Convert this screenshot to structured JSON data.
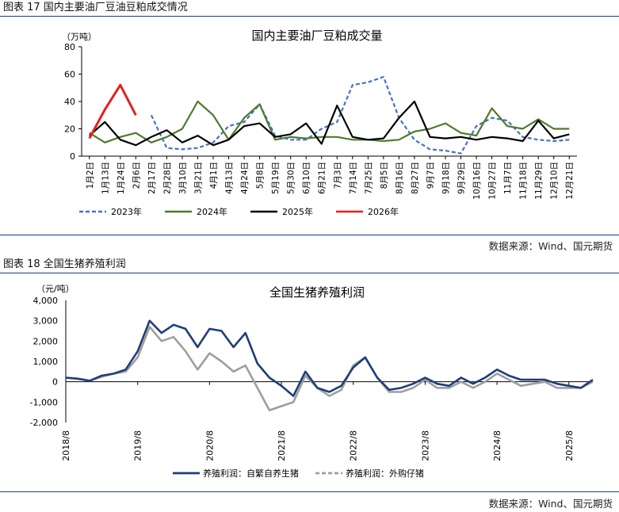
{
  "figure1": {
    "header": "图表 17  国内主要油厂豆油豆粕成交情况",
    "source": "数据来源：Wind、国元期货"
  },
  "figure2": {
    "header": "图表 18  全国生猪养殖利润",
    "source": "数据来源：Wind、国元期货"
  },
  "chart_data": [
    {
      "type": "line",
      "title": "国内主要油厂豆粕成交量",
      "ylabel": "（万吨）",
      "ylim": [
        0,
        80
      ],
      "yticks": [
        "0",
        "20",
        "40",
        "60",
        "80"
      ],
      "categories": [
        "1月2日",
        "1月13日",
        "1月24日",
        "2月6日",
        "2月17日",
        "2月28日",
        "3月10日",
        "3月21日",
        "4月1日",
        "4月13日",
        "4月24日",
        "5月8日",
        "5月19日",
        "5月30日",
        "6月10日",
        "6月21日",
        "7月3日",
        "7月14日",
        "7月25日",
        "8月5日",
        "8月16日",
        "8月27日",
        "9月7日",
        "9月18日",
        "9月29日",
        "10月16日",
        "10月27日",
        "11月7日",
        "11月18日",
        "11月29日",
        "12月10日",
        "12月21日"
      ],
      "series": [
        {
          "name": "2023年",
          "color": "#4472c4",
          "dash": "5,3",
          "values": [
            null,
            null,
            null,
            null,
            30,
            6,
            5,
            6,
            10,
            22,
            25,
            38,
            15,
            12,
            12,
            20,
            25,
            52,
            54,
            58,
            28,
            12,
            5,
            4,
            2,
            22,
            28,
            26,
            14,
            12,
            11,
            12
          ]
        },
        {
          "name": "2024年",
          "color": "#4e7a2c",
          "dash": "",
          "values": [
            17,
            10,
            14,
            17,
            10,
            14,
            20,
            40,
            30,
            12,
            28,
            38,
            12,
            14,
            13,
            14,
            14,
            12,
            12,
            11,
            12,
            18,
            20,
            24,
            17,
            15,
            35,
            22,
            20,
            27,
            20,
            20
          ]
        },
        {
          "name": "2025年",
          "color": "#000000",
          "dash": "",
          "values": [
            15,
            25,
            12,
            8,
            14,
            19,
            10,
            15,
            8,
            12,
            22,
            24,
            14,
            16,
            24,
            9,
            37,
            14,
            12,
            13,
            28,
            40,
            14,
            13,
            14,
            12,
            14,
            13,
            11,
            26,
            13,
            16
          ]
        },
        {
          "name": "2026年",
          "color": "#e81e1e",
          "dash": "",
          "values": [
            13,
            34,
            52,
            30,
            null,
            null,
            null,
            null,
            null,
            null,
            null,
            null,
            null,
            null,
            null,
            null,
            null,
            null,
            null,
            null,
            null,
            null,
            null,
            null,
            null,
            null,
            null,
            null,
            null,
            null,
            null,
            null
          ]
        }
      ]
    },
    {
      "type": "line",
      "title": "全国生猪养殖利润",
      "ylabel": "（元/吨）",
      "ylim": [
        -2000,
        4000
      ],
      "yticks": [
        "-2,000",
        "-1,000",
        "0",
        "1,000",
        "2,000",
        "3,000",
        "4,000"
      ],
      "xticks": [
        "2018/8",
        "2019/8",
        "2020/8",
        "2021/8",
        "2022/8",
        "2023/8",
        "2024/8",
        "2025/8"
      ],
      "x": [
        "2018/8",
        "2018/10",
        "2018/12",
        "2019/2",
        "2019/4",
        "2019/6",
        "2019/8",
        "2019/10",
        "2019/12",
        "2020/2",
        "2020/4",
        "2020/6",
        "2020/8",
        "2020/10",
        "2020/12",
        "2021/2",
        "2021/4",
        "2021/6",
        "2021/8",
        "2021/10",
        "2021/12",
        "2022/2",
        "2022/4",
        "2022/6",
        "2022/8",
        "2022/10",
        "2022/12",
        "2023/2",
        "2023/4",
        "2023/6",
        "2023/8",
        "2023/10",
        "2023/12",
        "2024/2",
        "2024/4",
        "2024/6",
        "2024/8",
        "2024/10",
        "2024/12",
        "2025/2",
        "2025/4",
        "2025/6",
        "2025/8",
        "2025/10",
        "2025/12"
      ],
      "series": [
        {
          "name": "养殖利润：自繁自养生猪",
          "color": "#1f3d7a",
          "dash": "",
          "values": [
            200,
            150,
            50,
            300,
            400,
            600,
            1500,
            3000,
            2400,
            2800,
            2600,
            1700,
            2600,
            2500,
            1700,
            2400,
            900,
            200,
            -200,
            -700,
            500,
            -300,
            -500,
            -200,
            700,
            1200,
            200,
            -400,
            -300,
            -100,
            200,
            -100,
            -200,
            200,
            -100,
            200,
            600,
            300,
            100,
            100,
            100,
            -100,
            -200,
            -300,
            100
          ]
        },
        {
          "name": "养殖利润：外购仔猪",
          "color": "#9e9e9e",
          "dash": "",
          "values": [
            200,
            150,
            50,
            250,
            400,
            500,
            1200,
            2700,
            2000,
            2200,
            1500,
            600,
            1400,
            1000,
            500,
            800,
            -300,
            -1400,
            -1200,
            -1000,
            300,
            -300,
            -700,
            -400,
            800,
            1200,
            200,
            -500,
            -500,
            -300,
            100,
            -300,
            -300,
            0,
            -300,
            0,
            400,
            100,
            -200,
            -100,
            0,
            -300,
            -300,
            -300,
            0
          ]
        }
      ]
    }
  ]
}
